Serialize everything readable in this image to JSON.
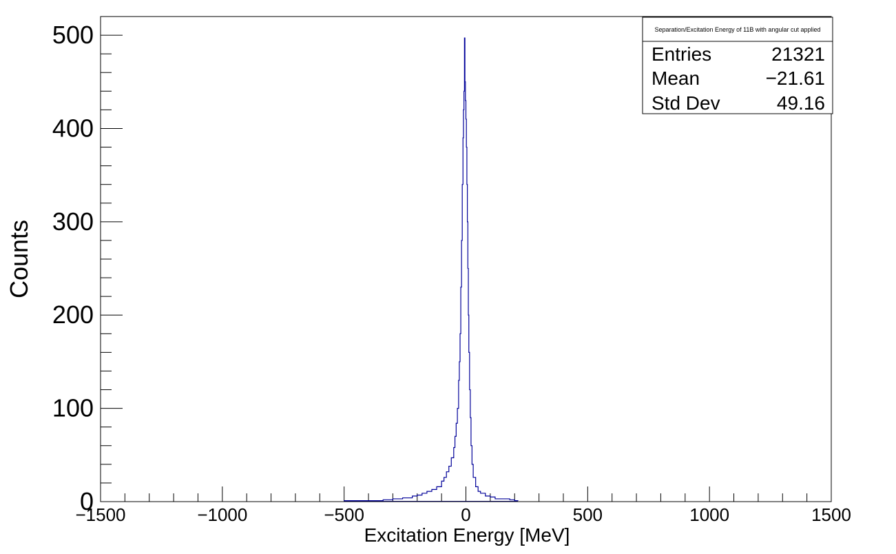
{
  "chart_data": {
    "type": "histogram",
    "xlabel": "Excitation Energy [MeV]",
    "ylabel": "Counts",
    "xlim": [
      -1500,
      1500
    ],
    "ylim": [
      0,
      520
    ],
    "x_ticks": [
      -1500,
      -1000,
      -500,
      0,
      500,
      1000,
      1500
    ],
    "x_tick_labels": [
      "−1500",
      "−1000",
      "−500",
      "0",
      "500",
      "1000",
      "1500"
    ],
    "y_ticks": [
      0,
      100,
      200,
      300,
      400,
      500
    ],
    "y_tick_labels": [
      "0",
      "100",
      "200",
      "300",
      "400",
      "500"
    ],
    "line_color": "#000099",
    "x": [
      -500,
      -420,
      -380,
      -340,
      -300,
      -260,
      -220,
      -200,
      -180,
      -160,
      -140,
      -120,
      -100,
      -90,
      -80,
      -70,
      -60,
      -50,
      -45,
      -40,
      -35,
      -30,
      -27,
      -24,
      -21,
      -18,
      -15,
      -12,
      -10,
      -8,
      -6,
      -4,
      -2,
      0,
      2,
      4,
      6,
      8,
      10,
      12,
      15,
      18,
      21,
      25,
      30,
      40,
      50,
      60,
      80,
      100,
      120,
      150,
      180,
      200,
      210
    ],
    "y": [
      1,
      1,
      1,
      2,
      3,
      4,
      6,
      7,
      9,
      11,
      13,
      16,
      22,
      26,
      32,
      38,
      47,
      58,
      70,
      84,
      100,
      130,
      150,
      180,
      230,
      280,
      340,
      390,
      420,
      440,
      497,
      450,
      430,
      410,
      380,
      340,
      300,
      250,
      200,
      160,
      120,
      90,
      60,
      40,
      26,
      16,
      11,
      9,
      6,
      5,
      3,
      3,
      2,
      1,
      1
    ],
    "grid": false,
    "stats_box": {
      "title": "Separation/Excitation Energy of 11B with angular cut applied",
      "rows": [
        {
          "label": "Entries",
          "value": "21321"
        },
        {
          "label": "Mean",
          "value": "−21.61"
        },
        {
          "label": "Std Dev",
          "value": "49.16"
        }
      ]
    }
  }
}
